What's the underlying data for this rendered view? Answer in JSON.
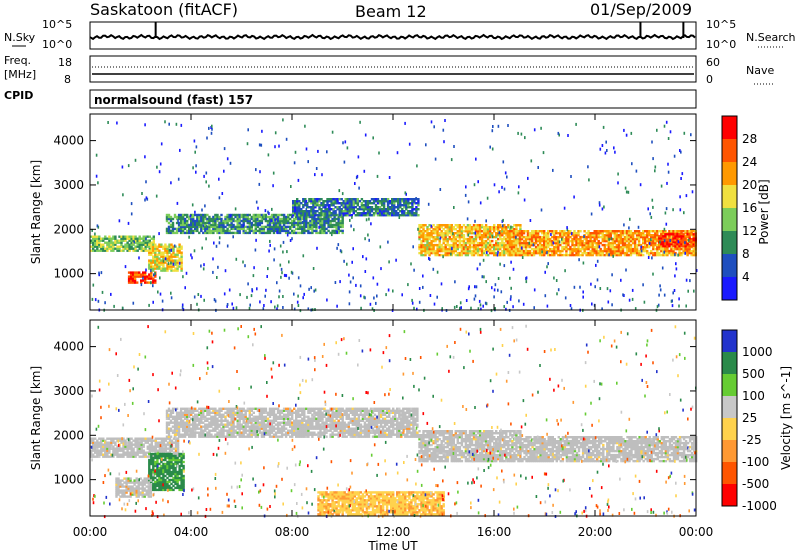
{
  "header": {
    "station": "Saskatoon (fitACF)",
    "beam": "Beam 12",
    "date": "01/Sep/2009"
  },
  "nsky": {
    "left_label": "N.Sky",
    "right_label": "N.Search",
    "left_ticks": [
      "10^5",
      "10^0"
    ],
    "right_ticks": [
      "10^5",
      "10^0"
    ]
  },
  "freq": {
    "label_top": "Freq.",
    "label_unit": "[MHz]",
    "right_label": "Nave",
    "left_ticks": [
      "18",
      "8"
    ],
    "right_ticks": [
      "60",
      "0"
    ]
  },
  "cpid": {
    "label": "CPID",
    "text": "normalsound (fast) 157"
  },
  "time_axis": {
    "label": "Time UT",
    "ticks": [
      "00:00",
      "04:00",
      "08:00",
      "12:00",
      "16:00",
      "20:00",
      "00:00"
    ]
  },
  "power_panel": {
    "ylabel": "Slant Range [km]",
    "yticks": [
      "1000",
      "2000",
      "3000",
      "4000"
    ],
    "colorbar_label": "Power [dB]",
    "colorbar_ticks": [
      "4",
      "8",
      "12",
      "16",
      "20",
      "24",
      "28"
    ],
    "colors": [
      "#1a1aff",
      "#1f4fbf",
      "#2e8b57",
      "#7ccd5a",
      "#f0e040",
      "#ff9900",
      "#ff5500",
      "#ff0000"
    ]
  },
  "velocity_panel": {
    "ylabel": "Slant Range [km]",
    "yticks": [
      "1000",
      "2000",
      "3000",
      "4000"
    ],
    "colorbar_label": "Velocity [m s^-1]",
    "colorbar_ticks": [
      "1000",
      "500",
      "100",
      "25",
      "-25",
      "-100",
      "-500",
      "-1000"
    ],
    "colors": [
      "#2233cc",
      "#2a8a4a",
      "#66cc33",
      "#c8c8c8",
      "#ffd24d",
      "#ff9933",
      "#ff5500",
      "#ff0000"
    ],
    "ground_scatter_color": "#bebebe"
  },
  "chart_data": [
    {
      "type": "heatmap",
      "title": "Power",
      "xlabel": "Time UT",
      "ylabel": "Slant Range [km]",
      "xlim": [
        0,
        24
      ],
      "ylim": [
        180,
        4600
      ],
      "colorbar": {
        "label": "Power [dB]",
        "range": [
          0,
          32
        ]
      },
      "bands": [
        {
          "t": [
            0,
            2.5
          ],
          "r": [
            1500,
            1850
          ],
          "power": 14
        },
        {
          "t": [
            1.5,
            2.6
          ],
          "r": [
            780,
            1050
          ],
          "power": 28
        },
        {
          "t": [
            2.3,
            3.6
          ],
          "r": [
            1050,
            1650
          ],
          "power": 18
        },
        {
          "t": [
            3,
            10
          ],
          "r": [
            1900,
            2350
          ],
          "power": 10
        },
        {
          "t": [
            8,
            13
          ],
          "r": [
            2300,
            2700
          ],
          "power": 8
        },
        {
          "t": [
            13,
            17
          ],
          "r": [
            1400,
            2100
          ],
          "power": 20
        },
        {
          "t": [
            16.5,
            24
          ],
          "r": [
            1400,
            1950
          ],
          "power": 22
        },
        {
          "t": [
            22.5,
            24
          ],
          "r": [
            1600,
            1900
          ],
          "power": 28
        }
      ]
    },
    {
      "type": "heatmap",
      "title": "Velocity",
      "xlabel": "Time UT",
      "ylabel": "Slant Range [km]",
      "xlim": [
        0,
        24
      ],
      "ylim": [
        180,
        4600
      ],
      "colorbar": {
        "label": "Velocity [m s^-1]",
        "range": [
          -1000,
          1000
        ]
      },
      "bands": [
        {
          "t": [
            0,
            3.5
          ],
          "r": [
            1500,
            1950
          ],
          "velocity": 0,
          "ground_scatter": true
        },
        {
          "t": [
            3,
            13
          ],
          "r": [
            1950,
            2600
          ],
          "velocity": 0,
          "ground_scatter": true
        },
        {
          "t": [
            13,
            17
          ],
          "r": [
            1400,
            2100
          ],
          "velocity": 0,
          "ground_scatter": true
        },
        {
          "t": [
            17,
            24
          ],
          "r": [
            1400,
            1950
          ],
          "velocity": 0,
          "ground_scatter": true
        },
        {
          "t": [
            2.3,
            3.7
          ],
          "r": [
            750,
            1600
          ],
          "velocity": 200
        },
        {
          "t": [
            1,
            2.4
          ],
          "r": [
            600,
            1050
          ],
          "velocity": 0,
          "ground_scatter": true
        },
        {
          "t": [
            9,
            14
          ],
          "r": [
            200,
            700
          ],
          "velocity": -40
        }
      ]
    }
  ]
}
